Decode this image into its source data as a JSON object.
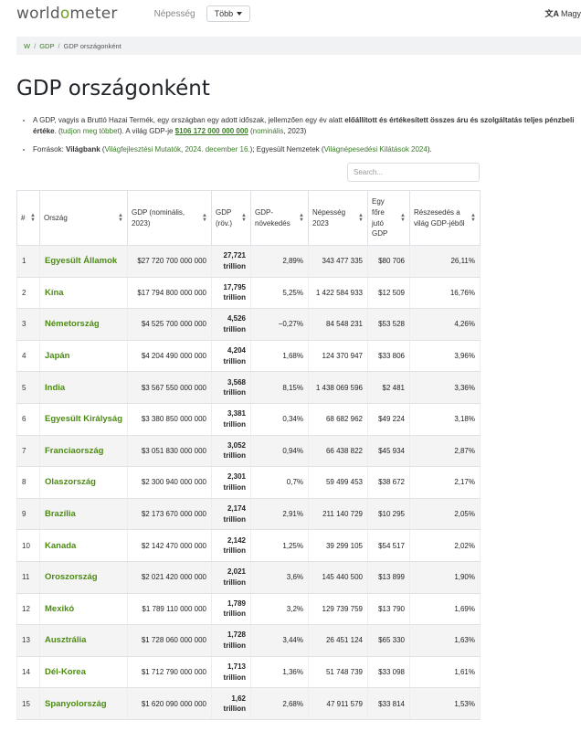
{
  "nav": {
    "logo_left": "world",
    "logo_mark": "o",
    "logo_right": "meter",
    "population_link": "Népesség",
    "more_label": "Több",
    "language_label": "Magy"
  },
  "breadcrumb": {
    "home": "W",
    "section": "GDP",
    "current": "GDP országonként"
  },
  "page_title": "GDP országonként",
  "intro": {
    "p1_text": "A GDP, vagyis a Bruttó Hazai Termék, egy országban egy adott időszak, jellemzően egy év alatt ",
    "p1_bold": "előállított és értékesített összes áru és szolgáltatás teljes pénzbeli értéke",
    "p1_dot": ". ",
    "p1_link": "tudjon meg többet",
    "p1_mid": ". A világ GDP-je ",
    "p1_world_gdp": "$106 172 000 000 000",
    "p1_paren_open": " (",
    "p1_nominal_link": "nominális",
    "p1_year": ", 2023)",
    "p2_prefix": "Források: ",
    "p2_worldbank": "Világbank",
    "p2_open": " (",
    "p2_wdi_link": "Világfejlesztési Mutatók",
    "p2_comma": ", ",
    "p2_date_link": "2024. december 16.",
    "p2_mid": "); Egyesült Nemzetek (",
    "p2_un_link": "Világnépesedési Kilátások 2024",
    "p2_close": ")."
  },
  "search": {
    "placeholder": "Search..."
  },
  "table": {
    "headers": {
      "rank": "#",
      "country": "Ország",
      "gdp_nominal": "GDP (nominális, 2023)",
      "gdp_short": "GDP (röv.)",
      "growth": "GDP-növekedés",
      "population": "Népesség 2023",
      "per_capita": "Egy főre jutó GDP",
      "share": "Részesedés a világ GDP-jéből"
    },
    "rows": [
      {
        "rank": "1",
        "country": "Egyesült Államok",
        "gdp": "$27 720 700 000 000",
        "short1": "27,721",
        "short2": "trillion",
        "growth": "2,89%",
        "pop": "343 477 335",
        "per_capita": "$80 706",
        "share": "26,11%"
      },
      {
        "rank": "2",
        "country": "Kína",
        "gdp": "$17 794 800 000 000",
        "short1": "17,795",
        "short2": "trillion",
        "growth": "5,25%",
        "pop": "1 422 584 933",
        "per_capita": "$12 509",
        "share": "16,76%"
      },
      {
        "rank": "3",
        "country": "Németország",
        "gdp": "$4 525 700 000 000",
        "short1": "4,526",
        "short2": "trillion",
        "growth": "−0,27%",
        "pop": "84 548 231",
        "per_capita": "$53 528",
        "share": "4,26%"
      },
      {
        "rank": "4",
        "country": "Japán",
        "gdp": "$4 204 490 000 000",
        "short1": "4,204",
        "short2": "trillion",
        "growth": "1,68%",
        "pop": "124 370 947",
        "per_capita": "$33 806",
        "share": "3,96%"
      },
      {
        "rank": "5",
        "country": "India",
        "gdp": "$3 567 550 000 000",
        "short1": "3,568",
        "short2": "trillion",
        "growth": "8,15%",
        "pop": "1 438 069 596",
        "per_capita": "$2 481",
        "share": "3,36%"
      },
      {
        "rank": "6",
        "country": "Egyesült Királyság",
        "gdp": "$3 380 850 000 000",
        "short1": "3,381",
        "short2": "trillion",
        "growth": "0,34%",
        "pop": "68 682 962",
        "per_capita": "$49 224",
        "share": "3,18%"
      },
      {
        "rank": "7",
        "country": "Franciaország",
        "gdp": "$3 051 830 000 000",
        "short1": "3,052",
        "short2": "trillion",
        "growth": "0,94%",
        "pop": "66 438 822",
        "per_capita": "$45 934",
        "share": "2,87%"
      },
      {
        "rank": "8",
        "country": "Olaszország",
        "gdp": "$2 300 940 000 000",
        "short1": "2,301",
        "short2": "trillion",
        "growth": "0,7%",
        "pop": "59 499 453",
        "per_capita": "$38 672",
        "share": "2,17%"
      },
      {
        "rank": "9",
        "country": "Brazília",
        "gdp": "$2 173 670 000 000",
        "short1": "2,174",
        "short2": "trillion",
        "growth": "2,91%",
        "pop": "211 140 729",
        "per_capita": "$10 295",
        "share": "2,05%"
      },
      {
        "rank": "10",
        "country": "Kanada",
        "gdp": "$2 142 470 000 000",
        "short1": "2,142",
        "short2": "trillion",
        "growth": "1,25%",
        "pop": "39 299 105",
        "per_capita": "$54 517",
        "share": "2,02%"
      },
      {
        "rank": "11",
        "country": "Oroszország",
        "gdp": "$2 021 420 000 000",
        "short1": "2,021",
        "short2": "trillion",
        "growth": "3,6%",
        "pop": "145 440 500",
        "per_capita": "$13 899",
        "share": "1,90%"
      },
      {
        "rank": "12",
        "country": "Mexikó",
        "gdp": "$1 789 110 000 000",
        "short1": "1,789",
        "short2": "trillion",
        "growth": "3,2%",
        "pop": "129 739 759",
        "per_capita": "$13 790",
        "share": "1,69%"
      },
      {
        "rank": "13",
        "country": "Ausztrália",
        "gdp": "$1 728 060 000 000",
        "short1": "1,728",
        "short2": "trillion",
        "growth": "3,44%",
        "pop": "26 451 124",
        "per_capita": "$65 330",
        "share": "1,63%"
      },
      {
        "rank": "14",
        "country": "Dél-Korea",
        "gdp": "$1 712 790 000 000",
        "short1": "1,713",
        "short2": "trillion",
        "growth": "1,36%",
        "pop": "51 748 739",
        "per_capita": "$33 098",
        "share": "1,61%"
      },
      {
        "rank": "15",
        "country": "Spanyolország",
        "gdp": "$1 620 090 000 000",
        "short1": "1,62",
        "short2": "trillion",
        "growth": "2,68%",
        "pop": "47 911 579",
        "per_capita": "$33 814",
        "share": "1,53%"
      }
    ]
  },
  "colors": {
    "accent_green": "#4c8a14",
    "logo_green": "#6f9c28",
    "stripe": "#f4f4f4"
  }
}
